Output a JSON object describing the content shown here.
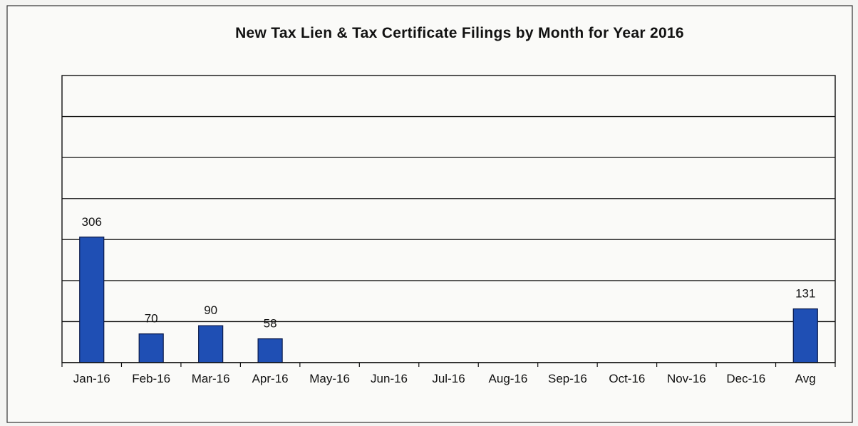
{
  "chart_data": {
    "type": "bar",
    "title": "New Tax Lien & Tax Certificate Filings by Month for Year 2016",
    "xlabel": "",
    "ylabel": "",
    "categories": [
      "Jan-16",
      "Feb-16",
      "Mar-16",
      "Apr-16",
      "May-16",
      "Jun-16",
      "Jul-16",
      "Aug-16",
      "Sep-16",
      "Oct-16",
      "Nov-16",
      "Dec-16",
      "Avg"
    ],
    "series": [
      {
        "values": [
          306,
          70,
          90,
          58,
          null,
          null,
          null,
          null,
          null,
          null,
          null,
          null,
          131
        ]
      }
    ],
    "data_labels": [
      "306",
      "70",
      "90",
      "58",
      "",
      "",
      "",
      "",
      "",
      "",
      "",
      "",
      "131"
    ],
    "ylim": [
      0,
      700
    ],
    "grid": true,
    "legend": "none",
    "bar_color": "#1f4fb4",
    "bar_border": "#0a1a4a"
  }
}
